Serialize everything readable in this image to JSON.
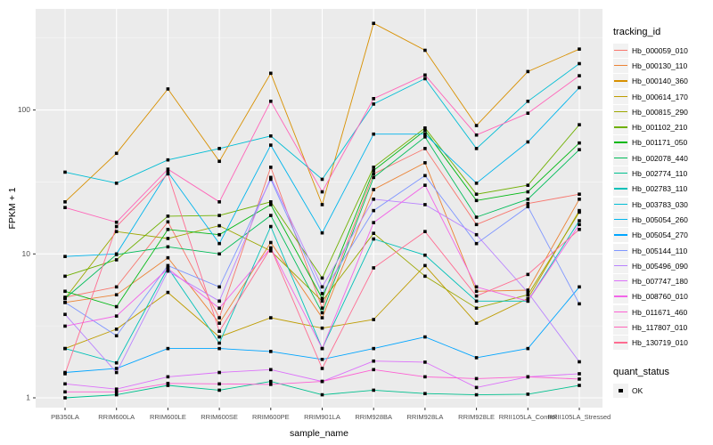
{
  "figure": {
    "y_axis": {
      "label": "FPKM + 1",
      "tick_labels": [
        "1",
        "10",
        "100"
      ],
      "tick_values": [
        1,
        10,
        100
      ]
    },
    "x_axis": {
      "label": "sample_name"
    },
    "legend": {
      "tracking_title": "tracking_id",
      "quant_title": "quant_status",
      "quant_items": [
        {
          "label": "OK",
          "shape": "filled-square",
          "color": "#000000"
        }
      ]
    },
    "colors": {
      "panel_bg": "#EBEBEB",
      "grid_major": "#FFFFFF",
      "grid_minor": "#F6F6F6",
      "tick_text": "#4D4D4D",
      "tick_mark": "#333333",
      "point": "#000000",
      "legend_key_bg": "#F2F2F2"
    }
  },
  "chart_data": {
    "type": "line",
    "title": "",
    "xlabel": "sample_name",
    "ylabel": "FPKM + 1",
    "y_scale": "log10",
    "ylim": [
      0.85,
      505
    ],
    "grid": true,
    "legend_position": "right",
    "point_shape": "filled-square",
    "point_color": "#000000",
    "quant_status_value": "OK",
    "x_categories": [
      "PB350LA",
      "RRIM600LA",
      "RRIM600LE",
      "RRIM600SE",
      "RRIM600PE",
      "RRIM901LA",
      "RRIM928BA",
      "RRIM928LA",
      "RRIM928LE",
      "RRII105LA_Control",
      "RRII105LA_Stressed"
    ],
    "series": [
      {
        "name": "Hb_000059_010",
        "color": "#F8766D",
        "values": [
          5.0,
          5.9,
          16.7,
          3.6,
          40,
          4.2,
          36,
          54,
          16,
          22.4,
          26
        ]
      },
      {
        "name": "Hb_000130_110",
        "color": "#EB8335",
        "values": [
          4.6,
          5.2,
          9.4,
          3.3,
          12,
          3.6,
          28,
          43,
          5.5,
          5.6,
          24
        ]
      },
      {
        "name": "Hb_000140_360",
        "color": "#D89000",
        "values": [
          23,
          50,
          140,
          44,
          180,
          22,
          400,
          260,
          78,
          185,
          265
        ]
      },
      {
        "name": "Hb_000614_170",
        "color": "#BE9C00",
        "values": [
          2.2,
          3.0,
          5.4,
          2.65,
          3.6,
          3.05,
          3.5,
          8.3,
          3.3,
          4.9,
          20
        ]
      },
      {
        "name": "Hb_000815_290",
        "color": "#9CA700",
        "values": [
          4.9,
          14.3,
          12.8,
          15.7,
          10.5,
          4.7,
          13.9,
          7.0,
          4.2,
          5.2,
          19.5
        ]
      },
      {
        "name": "Hb_001102_210",
        "color": "#6FB000",
        "values": [
          7.0,
          9.1,
          18.3,
          18.5,
          23,
          6.8,
          40,
          75,
          26,
          30,
          79
        ]
      },
      {
        "name": "Hb_001171_050",
        "color": "#00B813",
        "values": [
          5.5,
          4.3,
          14.8,
          13.6,
          22,
          4.9,
          38,
          72,
          23.5,
          27,
          59
        ]
      },
      {
        "name": "Hb_002078_440",
        "color": "#00BC59",
        "values": [
          4.9,
          9.9,
          11.2,
          10,
          18.5,
          3.9,
          34,
          65,
          18,
          24,
          53
        ]
      },
      {
        "name": "Hb_002774_110",
        "color": "#00C08E",
        "values": [
          1.0,
          1.05,
          1.22,
          1.13,
          1.3,
          1.05,
          1.13,
          1.07,
          1.05,
          1.06,
          1.22
        ]
      },
      {
        "name": "Hb_002783_110",
        "color": "#00C0B8",
        "values": [
          2.2,
          1.75,
          8.0,
          2.4,
          15.5,
          2.2,
          12.7,
          9.8,
          4.7,
          4.7,
          17
        ]
      },
      {
        "name": "Hb_003783_030",
        "color": "#00BDD4",
        "values": [
          37,
          31,
          45,
          54,
          66,
          33,
          110,
          165,
          54,
          115,
          210
        ]
      },
      {
        "name": "Hb_005054_260",
        "color": "#00B5EC",
        "values": [
          9.6,
          10,
          37,
          11.8,
          57,
          14,
          68,
          68,
          31,
          60,
          143
        ]
      },
      {
        "name": "Hb_005054_270",
        "color": "#00A5FF",
        "values": [
          1.5,
          1.6,
          2.2,
          2.2,
          2.1,
          1.85,
          2.2,
          2.65,
          1.9,
          2.2,
          5.9
        ]
      },
      {
        "name": "Hb_005144_110",
        "color": "#7F96FF",
        "values": [
          4.6,
          2.7,
          8.3,
          5.9,
          33,
          5.3,
          20,
          35,
          11.8,
          21.3,
          4.5
        ]
      },
      {
        "name": "Hb_005496_090",
        "color": "#B983FF",
        "values": [
          3.8,
          1.5,
          7.6,
          4.7,
          34,
          5.9,
          24,
          22,
          13.6,
          5.4,
          1.78
        ]
      },
      {
        "name": "Hb_007747_180",
        "color": "#DC71FA",
        "values": [
          1.25,
          1.15,
          1.4,
          1.5,
          1.57,
          1.3,
          1.8,
          1.77,
          1.18,
          1.4,
          1.47
        ]
      },
      {
        "name": "Hb_008760_010",
        "color": "#F265E8",
        "values": [
          3.15,
          3.7,
          7.9,
          4.2,
          11,
          2.2,
          16.5,
          30,
          5.9,
          4.7,
          16
        ]
      },
      {
        "name": "Hb_011671_460",
        "color": "#FD61D3",
        "values": [
          1.1,
          1.1,
          1.26,
          1.25,
          1.24,
          1.3,
          1.57,
          1.4,
          1.36,
          1.4,
          1.35
        ]
      },
      {
        "name": "Hb_117807_010",
        "color": "#FF65B9",
        "values": [
          21,
          16.6,
          38.8,
          23,
          115,
          27,
          120,
          175,
          67,
          95,
          173
        ]
      },
      {
        "name": "Hb_130719_010",
        "color": "#FF6C91",
        "values": [
          1.47,
          15.5,
          36,
          2.9,
          11,
          1.6,
          8,
          14.3,
          5.1,
          7.2,
          14.8
        ]
      }
    ]
  }
}
